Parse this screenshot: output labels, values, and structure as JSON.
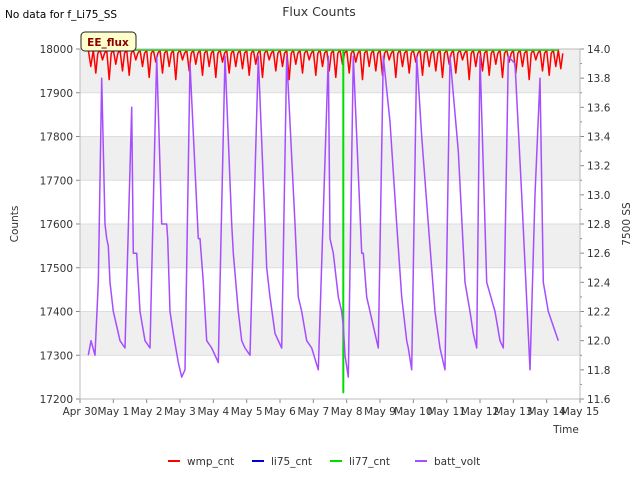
{
  "colors": {
    "wmp_cnt": "#ff0000",
    "li75_cnt": "#0000cc",
    "li77_cnt": "#00dd00",
    "batt_volt": "#a64dff",
    "band": "#efefef",
    "badge_bg": "#ffffcc",
    "badge_text": "#8b0000"
  },
  "page": {
    "no_data_note": "No data for f_Li75_SS",
    "badge": "EE_flux"
  },
  "chart_data": {
    "type": "line",
    "title": "Flux Counts",
    "xlabel": "Time",
    "ylabel": "Counts",
    "y2label": "7500 SS",
    "xlim": [
      0,
      15
    ],
    "ylim": [
      17200,
      18000
    ],
    "y2lim": [
      11.6,
      14.0
    ],
    "x_tick_labels": [
      "Apr 30",
      "May 1",
      "May 2",
      "May 3",
      "May 4",
      "May 5",
      "May 6",
      "May 7",
      "May 8",
      "May 9",
      "May 10",
      "May 11",
      "May 12",
      "May 13",
      "May 14",
      "May 15"
    ],
    "y_ticks": [
      17200,
      17300,
      17400,
      17500,
      17600,
      17700,
      17800,
      17900,
      18000
    ],
    "y2_ticks": [
      "11.6",
      "11.8",
      "12.0",
      "12.2",
      "12.4",
      "12.6",
      "12.8",
      "13.0",
      "13.2",
      "13.4",
      "13.6",
      "13.8",
      "14.0"
    ],
    "legend": [
      "wmp_cnt",
      "li75_cnt",
      "li77_cnt",
      "batt_volt"
    ],
    "series": [
      {
        "name": "wmp_cnt",
        "axis": "left",
        "note": "noisy, mostly 17930-17995",
        "x": [
          0.25,
          0.4,
          0.6,
          0.8,
          1.0,
          1.2,
          1.4,
          1.6,
          1.8,
          2.0,
          2.2,
          2.4,
          2.6,
          2.8,
          3.0,
          3.2,
          3.4,
          3.6,
          3.8,
          4.0,
          4.2,
          4.4,
          4.6,
          4.8,
          5.0,
          5.2,
          5.4,
          5.6,
          5.8,
          6.0,
          6.2,
          6.4,
          6.6,
          6.8,
          7.0,
          7.2,
          7.4,
          7.6,
          7.8,
          8.0,
          8.2,
          8.4,
          8.6,
          8.8,
          9.0,
          9.2,
          9.4,
          9.6,
          9.8,
          10.0,
          10.2,
          10.4,
          10.6,
          10.8,
          11.0,
          11.2,
          11.4,
          11.6,
          11.8,
          12.0,
          12.2,
          12.4,
          12.6,
          12.8,
          13.0,
          13.2,
          13.4,
          13.6,
          13.8,
          14.0,
          14.2,
          14.35
        ],
        "y": [
          17960,
          17945,
          17975,
          17930,
          17965,
          17950,
          17940,
          17975,
          17960,
          17935,
          17970,
          17945,
          17960,
          17930,
          17975,
          17950,
          17965,
          17940,
          17960,
          17935,
          17970,
          17945,
          17960,
          17955,
          17940,
          17965,
          17935,
          17975,
          17950,
          17960,
          17930,
          17965,
          17945,
          17975,
          17940,
          17960,
          17950,
          17935,
          17965,
          17945,
          17970,
          17930,
          17960,
          17950,
          17940,
          17975,
          17935,
          17960,
          17945,
          17970,
          17940,
          17960,
          17950,
          17935,
          17965,
          17945,
          17975,
          17930,
          17960,
          17950,
          17940,
          17965,
          17935,
          17970,
          17945,
          17960,
          17930,
          17975,
          17950,
          17940,
          17960,
          17955
        ]
      },
      {
        "name": "li75_cnt",
        "axis": "left",
        "x": [],
        "y": []
      },
      {
        "name": "li77_cnt",
        "axis": "left",
        "x": [
          0.25,
          7.9,
          7.9,
          7.9,
          14.35
        ],
        "y": [
          17998,
          17998,
          17215,
          17998,
          17998
        ]
      },
      {
        "name": "batt_volt",
        "axis": "right",
        "x": [
          0.25,
          0.33,
          0.45,
          0.55,
          0.65,
          0.75,
          0.8,
          0.85,
          0.9,
          1.0,
          1.1,
          1.2,
          1.35,
          1.55,
          1.6,
          1.65,
          1.7,
          1.8,
          1.95,
          2.1,
          2.3,
          2.45,
          2.6,
          2.63,
          2.7,
          2.8,
          2.95,
          3.05,
          3.15,
          3.3,
          3.55,
          3.6,
          3.7,
          3.8,
          3.95,
          4.05,
          4.15,
          4.35,
          4.55,
          4.6,
          4.75,
          4.85,
          4.95,
          5.1,
          5.35,
          5.55,
          5.6,
          5.7,
          5.85,
          6.05,
          6.2,
          6.45,
          6.55,
          6.65,
          6.8,
          6.95,
          7.15,
          7.45,
          7.5,
          7.6,
          7.75,
          7.85,
          7.9,
          7.95,
          8.05,
          8.2,
          8.45,
          8.5,
          8.6,
          8.8,
          8.95,
          9.1,
          9.3,
          9.5,
          9.65,
          9.8,
          9.85,
          9.95,
          10.1,
          10.25,
          10.45,
          10.65,
          10.8,
          10.9,
          10.95,
          11.1,
          11.35,
          11.55,
          11.7,
          11.8,
          11.9,
          12.0,
          12.2,
          12.45,
          12.6,
          12.7,
          12.85,
          13.05,
          13.25,
          13.5,
          13.65,
          13.8,
          13.9,
          14.05,
          14.2,
          14.35
        ],
        "y": [
          11.9,
          12.0,
          11.9,
          12.4,
          13.8,
          12.8,
          12.7,
          12.65,
          12.4,
          12.2,
          12.1,
          12.0,
          11.95,
          13.6,
          12.6,
          12.6,
          12.6,
          12.2,
          12.0,
          11.95,
          13.95,
          12.8,
          12.8,
          12.7,
          12.2,
          12.05,
          11.85,
          11.75,
          11.8,
          13.9,
          12.7,
          12.7,
          12.4,
          12.0,
          11.95,
          11.9,
          11.85,
          13.95,
          12.8,
          12.6,
          12.2,
          12.0,
          11.95,
          11.9,
          13.95,
          12.8,
          12.5,
          12.3,
          12.05,
          11.95,
          13.95,
          12.8,
          12.3,
          12.2,
          12.0,
          11.95,
          11.8,
          13.95,
          12.7,
          12.6,
          12.3,
          12.2,
          12.1,
          11.9,
          11.75,
          13.95,
          12.6,
          12.6,
          12.3,
          12.1,
          11.95,
          13.95,
          13.5,
          12.8,
          12.3,
          12.0,
          11.95,
          11.8,
          13.95,
          13.4,
          12.8,
          12.2,
          11.95,
          11.85,
          11.8,
          13.95,
          13.3,
          12.4,
          12.2,
          12.05,
          11.95,
          13.95,
          12.4,
          12.2,
          12.0,
          11.95,
          13.95,
          13.9,
          13.0,
          11.8,
          13.0,
          13.8,
          12.4,
          12.2,
          12.1,
          12.0
        ]
      }
    ]
  }
}
